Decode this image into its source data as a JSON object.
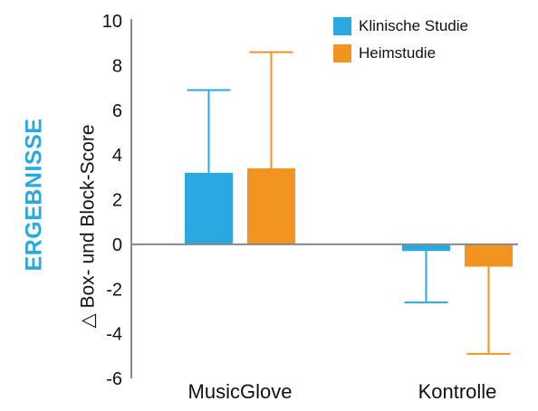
{
  "side_label": "ERGEBNISSE",
  "colors": {
    "klinisch": "#29a9e0",
    "heim": "#f39420",
    "axis": "#888888",
    "text": "#111111"
  },
  "chart_data": {
    "type": "bar",
    "title": "",
    "xlabel": "",
    "ylabel": "△ Box- und Block-Score",
    "categories": [
      "MusicGlove",
      "Kontrolle"
    ],
    "series": [
      {
        "name": "Klinische Studie",
        "values": [
          3.2,
          -0.3
        ],
        "error_bars": [
          3.7,
          2.3
        ]
      },
      {
        "name": "Heimstudie",
        "values": [
          3.4,
          -1.0
        ],
        "error_bars": [
          5.2,
          3.9
        ]
      }
    ],
    "ylim": [
      -6,
      10
    ],
    "yticks": [
      "10",
      "8",
      "6",
      "4",
      "2",
      "0",
      "-2",
      "-4",
      "-6"
    ],
    "legend_position": "top-right",
    "grid": false
  }
}
